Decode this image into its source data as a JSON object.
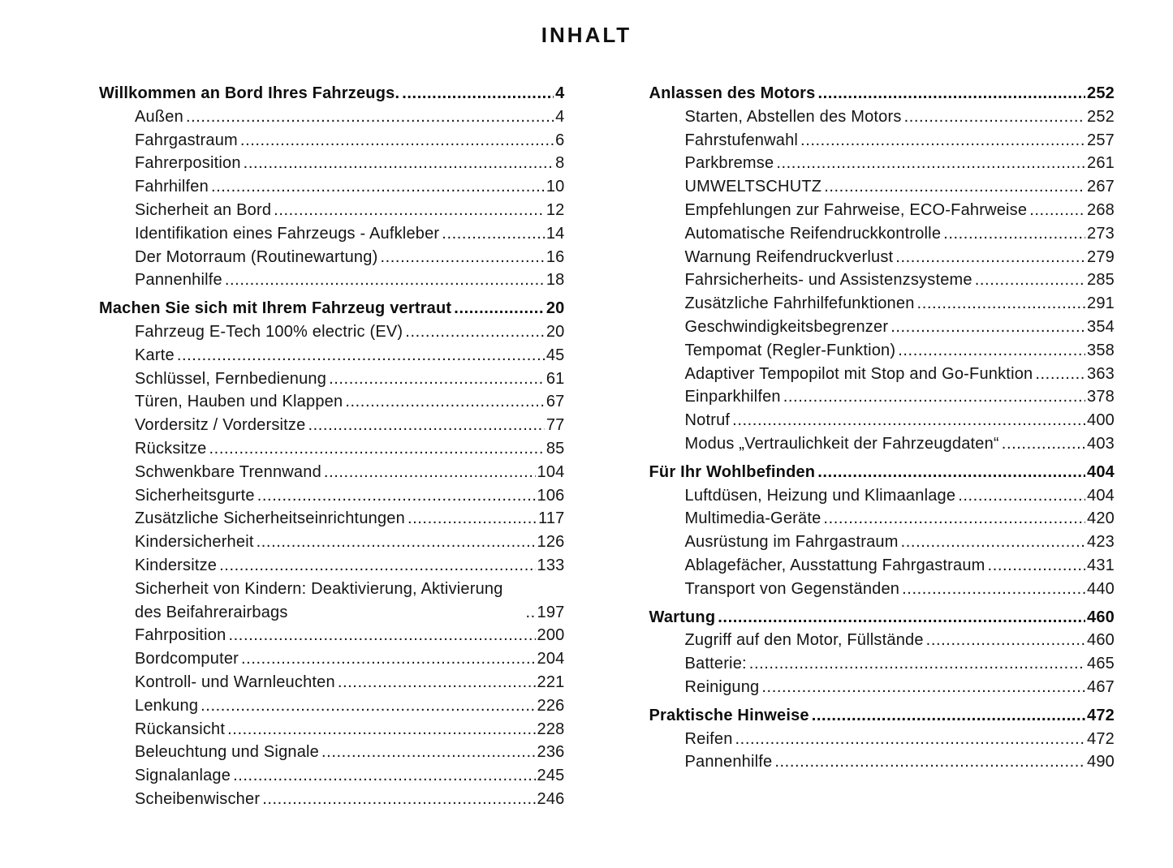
{
  "page": {
    "title": "INHALT"
  },
  "columns": [
    {
      "sections": [
        {
          "title": "Willkommen an Bord Ihres Fahrzeugs.",
          "page": "4",
          "items": [
            {
              "label": "Außen",
              "page": "4"
            },
            {
              "label": "Fahrgastraum",
              "page": "6"
            },
            {
              "label": "Fahrerposition",
              "page": "8"
            },
            {
              "label": "Fahrhilfen",
              "page": "10"
            },
            {
              "label": "Sicherheit an Bord",
              "page": "12"
            },
            {
              "label": "Identifikation eines Fahrzeugs - Aufkleber",
              "page": "14"
            },
            {
              "label": "Der Motorraum (Routinewartung)",
              "page": "16"
            },
            {
              "label": "Pannenhilfe",
              "page": "18"
            }
          ]
        },
        {
          "title": "Machen Sie sich mit Ihrem Fahrzeug vertraut",
          "page": "20",
          "items": [
            {
              "label": "Fahrzeug E-Tech 100% electric (EV)",
              "page": "20"
            },
            {
              "label": "Karte",
              "page": "45"
            },
            {
              "label": "Schlüssel, Fernbedienung",
              "page": "61"
            },
            {
              "label": "Türen, Hauben und Klappen",
              "page": "67"
            },
            {
              "label": "Vordersitz / Vordersitze",
              "page": "77"
            },
            {
              "label": "Rücksitze",
              "page": "85"
            },
            {
              "label": "Schwenkbare Trennwand",
              "page": "104"
            },
            {
              "label": "Sicherheitsgurte",
              "page": "106"
            },
            {
              "label": "Zusätzliche Sicherheitseinrichtungen",
              "page": "117"
            },
            {
              "label": "Kindersicherheit",
              "page": "126"
            },
            {
              "label": "Kindersitze",
              "page": "133"
            },
            {
              "label": "Sicherheit von Kindern: Deaktivierung, Aktivierung des Beifahrerairbags",
              "page": "197"
            },
            {
              "label": "Fahrposition",
              "page": "200"
            },
            {
              "label": "Bordcomputer",
              "page": "204"
            },
            {
              "label": "Kontroll- und Warnleuchten",
              "page": "221"
            },
            {
              "label": "Lenkung",
              "page": "226"
            },
            {
              "label": "Rückansicht",
              "page": "228"
            },
            {
              "label": "Beleuchtung und Signale",
              "page": "236"
            },
            {
              "label": "Signalanlage",
              "page": "245"
            },
            {
              "label": "Scheibenwischer",
              "page": "246"
            }
          ]
        }
      ]
    },
    {
      "sections": [
        {
          "title": "Anlassen des Motors",
          "page": "252",
          "items": [
            {
              "label": "Starten, Abstellen des Motors",
              "page": "252"
            },
            {
              "label": "Fahrstufenwahl",
              "page": "257"
            },
            {
              "label": "Parkbremse",
              "page": "261"
            },
            {
              "label": "UMWELTSCHUTZ",
              "page": "267"
            },
            {
              "label": "Empfehlungen zur Fahrweise, ECO-Fahrweise",
              "page": "268"
            },
            {
              "label": "Automatische Reifendruckkontrolle",
              "page": "273"
            },
            {
              "label": "Warnung Reifendruckverlust",
              "page": "279"
            },
            {
              "label": "Fahrsicherheits- und Assistenzsysteme",
              "page": "285"
            },
            {
              "label": "Zusätzliche Fahrhilfefunktionen",
              "page": "291"
            },
            {
              "label": "Geschwindigkeitsbegrenzer",
              "page": "354"
            },
            {
              "label": "Tempomat (Regler-Funktion)",
              "page": "358"
            },
            {
              "label": "Adaptiver Tempopilot mit Stop and Go-Funktion",
              "page": "363"
            },
            {
              "label": "Einparkhilfen",
              "page": "378"
            },
            {
              "label": "Notruf",
              "page": "400"
            },
            {
              "label": "Modus „Vertraulichkeit der Fahrzeugdaten“",
              "page": "403"
            }
          ]
        },
        {
          "title": "Für Ihr Wohlbefinden",
          "page": "404",
          "items": [
            {
              "label": "Luftdüsen, Heizung und Klimaanlage",
              "page": "404"
            },
            {
              "label": "Multimedia-Geräte",
              "page": "420"
            },
            {
              "label": "Ausrüstung im Fahrgastraum",
              "page": "423"
            },
            {
              "label": "Ablagefächer, Ausstattung Fahrgastraum",
              "page": "431"
            },
            {
              "label": "Transport von Gegenständen",
              "page": "440"
            }
          ]
        },
        {
          "title": "Wartung",
          "page": "460",
          "items": [
            {
              "label": "Zugriff auf den Motor, Füllstände",
              "page": "460"
            },
            {
              "label": "Batterie:",
              "page": "465"
            },
            {
              "label": "Reinigung",
              "page": "467"
            }
          ]
        },
        {
          "title": "Praktische Hinweise",
          "page": "472",
          "items": [
            {
              "label": "Reifen",
              "page": "472"
            },
            {
              "label": "Pannenhilfe",
              "page": "490"
            }
          ]
        }
      ]
    }
  ]
}
